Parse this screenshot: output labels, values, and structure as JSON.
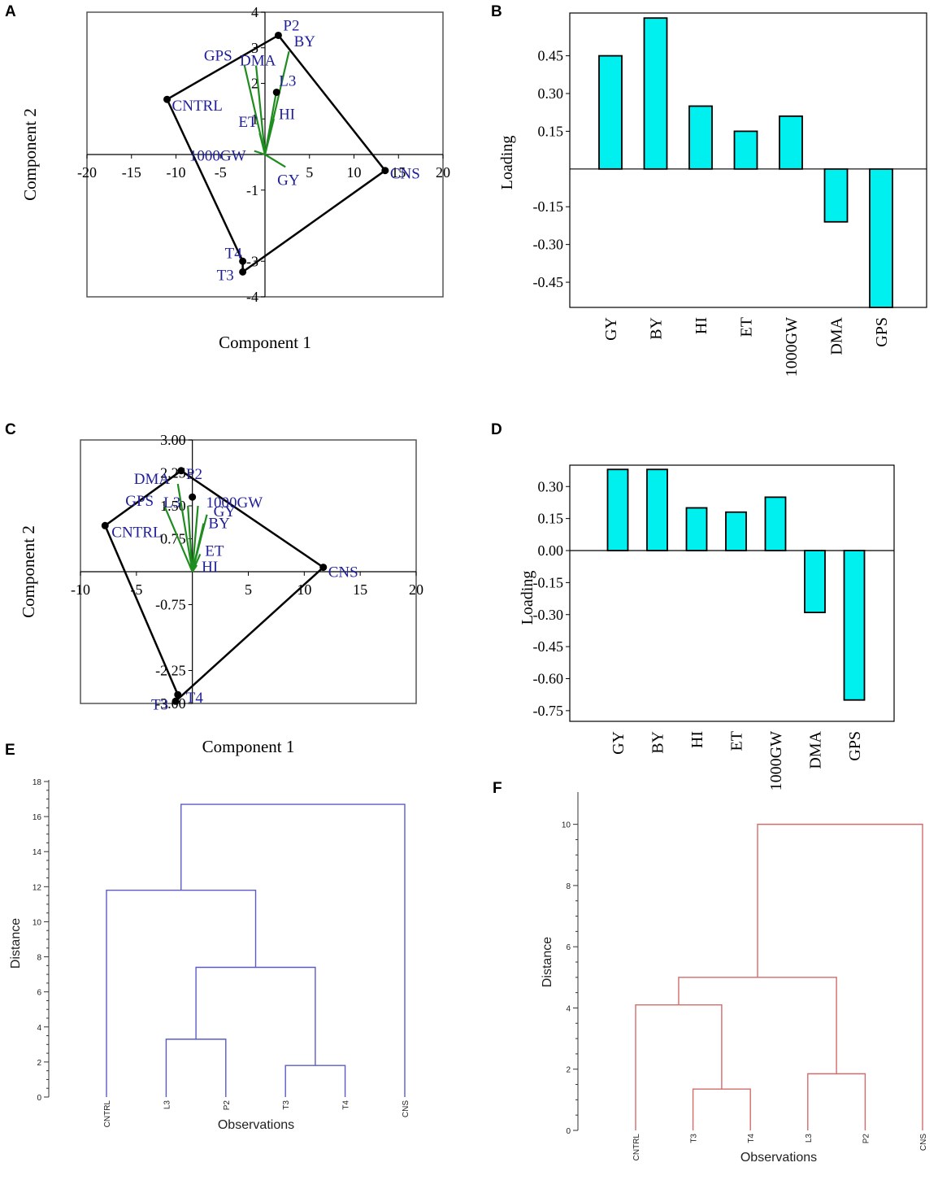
{
  "chart_data": [
    {
      "panel": "A",
      "type": "scatter",
      "subtype": "biplot",
      "xlabel": "Component 1",
      "ylabel": "Component 2",
      "xlim": [
        -20,
        20
      ],
      "ylim": [
        -4,
        4
      ],
      "xticks": [
        -20,
        -15,
        -10,
        -5,
        5,
        10,
        15,
        20
      ],
      "yticks": [
        -4,
        -3,
        -1,
        1,
        2,
        3,
        4
      ],
      "points": [
        {
          "label": "P2",
          "x": 1.5,
          "y": 3.35
        },
        {
          "label": "L3",
          "x": 1.3,
          "y": 1.75
        },
        {
          "label": "CNTRL",
          "x": -11,
          "y": 1.55
        },
        {
          "label": "CNS",
          "x": 13.5,
          "y": -0.45
        },
        {
          "label": "T4",
          "x": -2.5,
          "y": -3.0
        },
        {
          "label": "T3",
          "x": -2.5,
          "y": -3.3
        }
      ],
      "hull": [
        "P2",
        "CNS",
        "T3",
        "T4",
        "CNTRL"
      ],
      "vectors": [
        {
          "label": "GPS",
          "x": -2.3,
          "y": 2.5
        },
        {
          "label": "DMA",
          "x": -1.0,
          "y": 2.5
        },
        {
          "label": "BY",
          "x": 2.7,
          "y": 2.9
        },
        {
          "label": "L3",
          "x": 1.3,
          "y": 1.8
        },
        {
          "label": "HI",
          "x": 1.0,
          "y": 1.0
        },
        {
          "label": "ET",
          "x": -0.6,
          "y": 0.6
        },
        {
          "label": "1000GW",
          "x": -1.2,
          "y": 0.1
        },
        {
          "label": "GY",
          "x": 2.3,
          "y": -0.35
        }
      ]
    },
    {
      "panel": "B",
      "type": "bar",
      "ylabel": "Loading",
      "ylim": [
        -0.55,
        0.62
      ],
      "yticks": [
        0.45,
        0.3,
        0.15,
        -0.15,
        -0.3,
        -0.45
      ],
      "ytick_labels": [
        "0.45",
        "0.30",
        "0.15",
        "-0.15",
        "-0.30",
        "-0.45"
      ],
      "categories": [
        "GY",
        "BY",
        "HI",
        "ET",
        "1000GW",
        "DMA",
        "GPS"
      ],
      "values": [
        0.45,
        0.6,
        0.25,
        0.15,
        0.21,
        -0.21,
        -0.55
      ]
    },
    {
      "panel": "C",
      "type": "scatter",
      "subtype": "biplot",
      "xlabel": "Component 1",
      "ylabel": "Component 2",
      "xlim": [
        -10,
        20
      ],
      "ylim": [
        -3,
        3
      ],
      "xticks": [
        -10,
        -5,
        5,
        10,
        15,
        20
      ],
      "yticks": [
        3.0,
        2.25,
        1.5,
        0.75,
        -0.75,
        -2.25,
        -3.0
      ],
      "ytick_labels": [
        "3.00",
        "2.25",
        "1.50",
        "0.75",
        "-0.75",
        "-2.25",
        "-3.00"
      ],
      "points": [
        {
          "label": "P2",
          "x": -1,
          "y": 2.3
        },
        {
          "label": "L3",
          "x": 0,
          "y": 1.7
        },
        {
          "label": "CNTRL",
          "x": -7.8,
          "y": 1.05
        },
        {
          "label": "CNS",
          "x": 11.7,
          "y": 0.1
        },
        {
          "label": "T4",
          "x": -1.3,
          "y": -2.8
        },
        {
          "label": "T3",
          "x": -1.5,
          "y": -2.95
        }
      ],
      "hull": [
        "P2",
        "CNS",
        "T3",
        "T4",
        "CNTRL"
      ],
      "vectors": [
        {
          "label": "DMA",
          "x": -1.3,
          "y": 2.0
        },
        {
          "label": "L3",
          "x": -0.4,
          "y": 1.5
        },
        {
          "label": "GPS",
          "x": -2.5,
          "y": 1.5
        },
        {
          "label": "1000GW",
          "x": 0.5,
          "y": 1.5
        },
        {
          "label": "GY",
          "x": 1.3,
          "y": 1.3
        },
        {
          "label": "BY",
          "x": 1.0,
          "y": 1.1
        },
        {
          "label": "ET",
          "x": 0.7,
          "y": 0.4
        },
        {
          "label": "HI",
          "x": 0.4,
          "y": 0.15
        }
      ]
    },
    {
      "panel": "D",
      "type": "bar",
      "ylabel": "Loading",
      "ylim": [
        -0.8,
        0.4
      ],
      "yticks": [
        0.3,
        0.15,
        0.0,
        -0.15,
        -0.3,
        -0.45,
        -0.6,
        -0.75
      ],
      "ytick_labels": [
        "0.30",
        "0.15",
        "0.00",
        "-0.15",
        "-0.30",
        "-0.45",
        "-0.60",
        "-0.75"
      ],
      "categories": [
        "GY",
        "BY",
        "HI",
        "ET",
        "1000GW",
        "DMA",
        "GPS"
      ],
      "values": [
        0.38,
        0.38,
        0.2,
        0.18,
        0.25,
        -0.29,
        -0.7
      ]
    },
    {
      "panel": "E",
      "type": "dendrogram",
      "xlabel": "Observations",
      "ylabel": "Distance",
      "ylim": [
        0,
        18
      ],
      "yticks": [
        0,
        2,
        4,
        6,
        8,
        10,
        12,
        14,
        16,
        18
      ],
      "leaves": [
        "CNTRL",
        "L3",
        "P2",
        "T3",
        "T4",
        "CNS"
      ],
      "merges": [
        {
          "left": "T3",
          "right": "T4",
          "height": 1.8
        },
        {
          "left": "L3",
          "right": "P2",
          "height": 3.3
        },
        {
          "left": "L3,P2",
          "right": "T3,T4",
          "height": 7.4
        },
        {
          "left": "CNTRL",
          "right": "L3,P2,T3,T4",
          "height": 11.8
        },
        {
          "left": "CNTRL,L3,P2,T3,T4",
          "right": "CNS",
          "height": 16.7
        }
      ]
    },
    {
      "panel": "F",
      "type": "dendrogram",
      "xlabel": "Observations",
      "ylabel": "Distance",
      "ylim": [
        0,
        11
      ],
      "yticks": [
        0,
        2,
        4,
        6,
        8,
        10
      ],
      "leaves": [
        "CNTRL",
        "T3",
        "T4",
        "L3",
        "P2",
        "CNS"
      ],
      "merges": [
        {
          "left": "T3",
          "right": "T4",
          "height": 1.35
        },
        {
          "left": "L3",
          "right": "P2",
          "height": 1.85
        },
        {
          "left": "CNTRL",
          "right": "T3,T4",
          "height": 4.1
        },
        {
          "left": "CNTRL,T3,T4",
          "right": "L3,P2",
          "height": 5.0
        },
        {
          "left": "CNTRL,T3,T4,L3,P2",
          "right": "CNS",
          "height": 10.0
        }
      ]
    }
  ],
  "colors": {
    "bar_fill": "#00f0f0",
    "vector": "#1e8c1e",
    "point_label": "#1f1f9a",
    "dendro_E": "#5b5bc8",
    "dendro_F": "#d36b6b"
  }
}
